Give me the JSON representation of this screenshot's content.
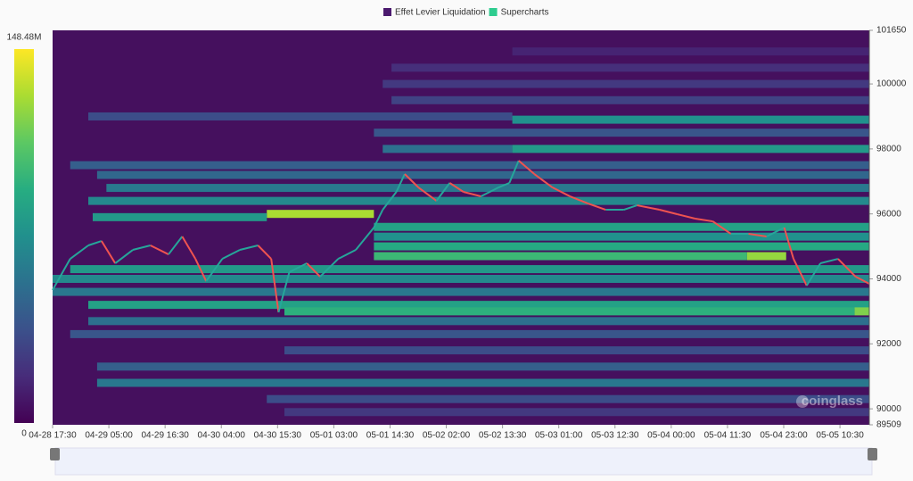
{
  "chart_data": {
    "type": "heatmap",
    "legend": [
      {
        "label": "Effet Levier Liquidation",
        "color": "#4b1a6e"
      },
      {
        "label": "Supercharts",
        "color": "#2ecc8f"
      }
    ],
    "plot_background": "#45105e",
    "xlim": [
      0,
      167
    ],
    "xticks": [
      {
        "value": 0,
        "label": "04-28 17:30"
      },
      {
        "value": 11.5,
        "label": "04-29 05:00"
      },
      {
        "value": 23,
        "label": "04-29 16:30"
      },
      {
        "value": 34.5,
        "label": "04-30 04:00"
      },
      {
        "value": 46,
        "label": "04-30 15:30"
      },
      {
        "value": 57.5,
        "label": "05-01 03:00"
      },
      {
        "value": 69,
        "label": "05-01 14:30"
      },
      {
        "value": 80.5,
        "label": "05-02 02:00"
      },
      {
        "value": 92,
        "label": "05-02 13:30"
      },
      {
        "value": 103.5,
        "label": "05-03 01:00"
      },
      {
        "value": 115,
        "label": "05-03 12:30"
      },
      {
        "value": 126.5,
        "label": "05-04 00:00"
      },
      {
        "value": 138,
        "label": "05-04 11:30"
      },
      {
        "value": 149.5,
        "label": "05-04 23:00"
      },
      {
        "value": 161,
        "label": "05-05 10:30"
      }
    ],
    "ylim": [
      89509,
      101650
    ],
    "yticks": [
      89509,
      90000,
      92000,
      94000,
      96000,
      98000,
      100000,
      101650
    ],
    "colorbar": {
      "range": [
        0,
        148.48
      ],
      "ticks": [
        {
          "value": 148.48,
          "label": "148.48M"
        },
        0
      ],
      "colors": [
        "#440154",
        "#472c7a",
        "#3b518b",
        "#2c718e",
        "#21908d",
        "#27ad81",
        "#5cc863",
        "#aadc32",
        "#fde725"
      ]
    },
    "bands": [
      {
        "price": 101000,
        "start": 94,
        "end": 167,
        "value": 15
      },
      {
        "price": 100500,
        "start": 69.3,
        "end": 167,
        "value": 20
      },
      {
        "price": 100000,
        "start": 67.5,
        "end": 167,
        "value": 25
      },
      {
        "price": 99500,
        "start": 69.3,
        "end": 167,
        "value": 30
      },
      {
        "price": 99000,
        "start": 7.3,
        "end": 94,
        "value": 35
      },
      {
        "price": 98900,
        "start": 94,
        "end": 167,
        "value": 75
      },
      {
        "price": 98500,
        "start": 65.7,
        "end": 167,
        "value": 40
      },
      {
        "price": 98000,
        "start": 67.5,
        "end": 94,
        "value": 55
      },
      {
        "price": 98000,
        "start": 94,
        "end": 167,
        "value": 80
      },
      {
        "price": 97500,
        "start": 3.6,
        "end": 167,
        "value": 45
      },
      {
        "price": 97200,
        "start": 9.1,
        "end": 167,
        "value": 50
      },
      {
        "price": 96800,
        "start": 11,
        "end": 167,
        "value": 60
      },
      {
        "price": 96400,
        "start": 7.3,
        "end": 167,
        "value": 70
      },
      {
        "price": 96000,
        "start": 43.8,
        "end": 65.7,
        "value": 130
      },
      {
        "price": 95900,
        "start": 8.2,
        "end": 43.8,
        "value": 80
      },
      {
        "price": 95600,
        "start": 65.7,
        "end": 167,
        "value": 85
      },
      {
        "price": 95300,
        "start": 65.7,
        "end": 167,
        "value": 75
      },
      {
        "price": 95000,
        "start": 65.7,
        "end": 167,
        "value": 90
      },
      {
        "price": 94700,
        "start": 65.7,
        "end": 142,
        "value": 100
      },
      {
        "price": 94700,
        "start": 142,
        "end": 150,
        "value": 125
      },
      {
        "price": 94300,
        "start": 3.6,
        "end": 167,
        "value": 80
      },
      {
        "price": 94000,
        "start": 0,
        "end": 167,
        "value": 70
      },
      {
        "price": 93600,
        "start": 0,
        "end": 167,
        "value": 60
      },
      {
        "price": 93200,
        "start": 7.3,
        "end": 167,
        "value": 85
      },
      {
        "price": 93000,
        "start": 47.4,
        "end": 164,
        "value": 95
      },
      {
        "price": 93000,
        "start": 164,
        "end": 167,
        "value": 120
      },
      {
        "price": 92700,
        "start": 7.3,
        "end": 167,
        "value": 55
      },
      {
        "price": 92300,
        "start": 3.6,
        "end": 167,
        "value": 40
      },
      {
        "price": 91800,
        "start": 47.4,
        "end": 167,
        "value": 35
      },
      {
        "price": 91300,
        "start": 9.1,
        "end": 167,
        "value": 45
      },
      {
        "price": 90800,
        "start": 9.1,
        "end": 167,
        "value": 60
      },
      {
        "price": 90300,
        "start": 43.8,
        "end": 167,
        "value": 35
      },
      {
        "price": 89900,
        "start": 47.4,
        "end": 167,
        "value": 25
      }
    ],
    "price": {
      "up_color": "#26a69a",
      "down_color": "#ef5350",
      "x": [
        0,
        3.6,
        7.3,
        10,
        12.8,
        16.4,
        20,
        23.7,
        26.5,
        29.2,
        31.4,
        34.7,
        38.3,
        42,
        44.7,
        46.2,
        48.4,
        52,
        54.7,
        58.4,
        62,
        65.7,
        67.5,
        70.3,
        72,
        74.8,
        78.5,
        81.2,
        84,
        87.6,
        91.2,
        93.4,
        95.3,
        98.5,
        102.2,
        105.8,
        109.5,
        113.1,
        116.8,
        119.5,
        124.1,
        127.7,
        131.4,
        135,
        138.7,
        142.3,
        146,
        149.6,
        151.5,
        154.2,
        157,
        160.6,
        164.2,
        167
      ],
      "values": [
        93656,
        94617,
        95030,
        95167,
        94480,
        94892,
        95030,
        94754,
        95304,
        94617,
        93930,
        94617,
        94892,
        95030,
        94617,
        92969,
        94205,
        94480,
        94068,
        94617,
        94892,
        95579,
        96128,
        96678,
        97227,
        96815,
        96403,
        96953,
        96678,
        96540,
        96815,
        96953,
        97640,
        97227,
        96815,
        96540,
        96320,
        96128,
        96128,
        96265,
        96128,
        95991,
        95854,
        95770,
        95386,
        95386,
        95304,
        95579,
        94617,
        93793,
        94480,
        94617,
        94068,
        93848
      ]
    },
    "watermark": "coinglass"
  }
}
